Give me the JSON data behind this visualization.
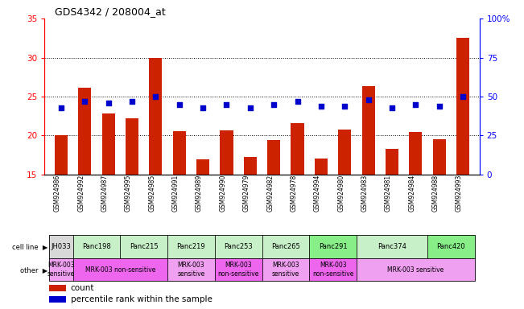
{
  "title": "GDS4342 / 208004_at",
  "samples": [
    "GSM924986",
    "GSM924992",
    "GSM924987",
    "GSM924995",
    "GSM924985",
    "GSM924991",
    "GSM924989",
    "GSM924990",
    "GSM924979",
    "GSM924982",
    "GSM924978",
    "GSM924994",
    "GSM924980",
    "GSM924983",
    "GSM924981",
    "GSM924984",
    "GSM924988",
    "GSM924993"
  ],
  "bar_values": [
    20.1,
    26.1,
    22.8,
    22.2,
    29.9,
    20.6,
    17.0,
    20.7,
    17.3,
    19.4,
    21.6,
    17.1,
    20.8,
    26.3,
    18.3,
    20.5,
    19.5,
    32.5
  ],
  "dot_values_pct": [
    43,
    47,
    46,
    47,
    50,
    45,
    43,
    45,
    43,
    45,
    47,
    44,
    44,
    48,
    43,
    45,
    44,
    50
  ],
  "ylim_left": [
    15,
    35
  ],
  "ylim_right": [
    0,
    100
  ],
  "yticks_left": [
    15,
    20,
    25,
    30,
    35
  ],
  "yticks_right": [
    0,
    25,
    50,
    75,
    100
  ],
  "bar_color": "#cc2200",
  "dot_color": "#0000cc",
  "cell_lines": [
    {
      "name": "JH033",
      "start": 0,
      "end": 1,
      "color": "#d8d8d8"
    },
    {
      "name": "Panc198",
      "start": 1,
      "end": 3,
      "color": "#c8f0c8"
    },
    {
      "name": "Panc215",
      "start": 3,
      "end": 5,
      "color": "#c8f0c8"
    },
    {
      "name": "Panc219",
      "start": 5,
      "end": 7,
      "color": "#c8f0c8"
    },
    {
      "name": "Panc253",
      "start": 7,
      "end": 9,
      "color": "#c8f0c8"
    },
    {
      "name": "Panc265",
      "start": 9,
      "end": 11,
      "color": "#c8f0c8"
    },
    {
      "name": "Panc291",
      "start": 11,
      "end": 13,
      "color": "#88ee88"
    },
    {
      "name": "Panc374",
      "start": 13,
      "end": 16,
      "color": "#c8f0c8"
    },
    {
      "name": "Panc420",
      "start": 16,
      "end": 18,
      "color": "#88ee88"
    }
  ],
  "other_labels": [
    {
      "text": "MRK-003\nsensitive",
      "start": 0,
      "end": 1,
      "color": "#f0a0f0"
    },
    {
      "text": "MRK-003 non-sensitive",
      "start": 1,
      "end": 5,
      "color": "#ee66ee"
    },
    {
      "text": "MRK-003\nsensitive",
      "start": 5,
      "end": 7,
      "color": "#f0a0f0"
    },
    {
      "text": "MRK-003\nnon-sensitive",
      "start": 7,
      "end": 9,
      "color": "#ee66ee"
    },
    {
      "text": "MRK-003\nsensitive",
      "start": 9,
      "end": 11,
      "color": "#f0a0f0"
    },
    {
      "text": "MRK-003\nnon-sensitive",
      "start": 11,
      "end": 13,
      "color": "#ee66ee"
    },
    {
      "text": "MRK-003 sensitive",
      "start": 13,
      "end": 18,
      "color": "#f0a0f0"
    }
  ]
}
